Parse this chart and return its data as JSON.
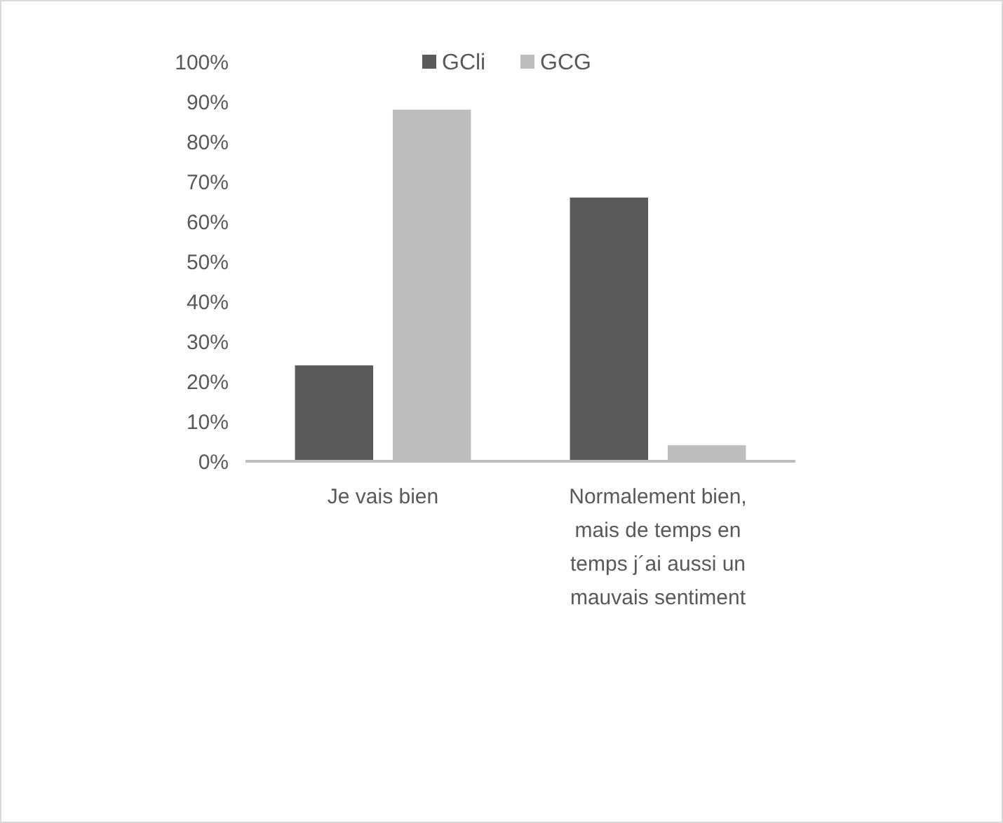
{
  "chart_data": {
    "type": "bar",
    "categories": [
      "Je vais bien",
      "Normalement bien, mais de temps en temps j´ai aussi un mauvais sentiment"
    ],
    "series": [
      {
        "name": "GCli",
        "color": "#5a5a5a",
        "values": [
          24,
          66
        ]
      },
      {
        "name": "GCG",
        "color": "#bdbdbd",
        "values": [
          88,
          4
        ]
      }
    ],
    "ylim": [
      0,
      100
    ],
    "yticks": [
      {
        "value": 0,
        "label": "0%"
      },
      {
        "value": 10,
        "label": "10%"
      },
      {
        "value": 20,
        "label": "20%"
      },
      {
        "value": 30,
        "label": "30%"
      },
      {
        "value": 40,
        "label": "40%"
      },
      {
        "value": 50,
        "label": "50%"
      },
      {
        "value": 60,
        "label": "60%"
      },
      {
        "value": 70,
        "label": "70%"
      },
      {
        "value": 80,
        "label": "80%"
      },
      {
        "value": 90,
        "label": "90%"
      },
      {
        "value": 100,
        "label": "100%"
      }
    ],
    "legend": "top",
    "grid": false
  }
}
